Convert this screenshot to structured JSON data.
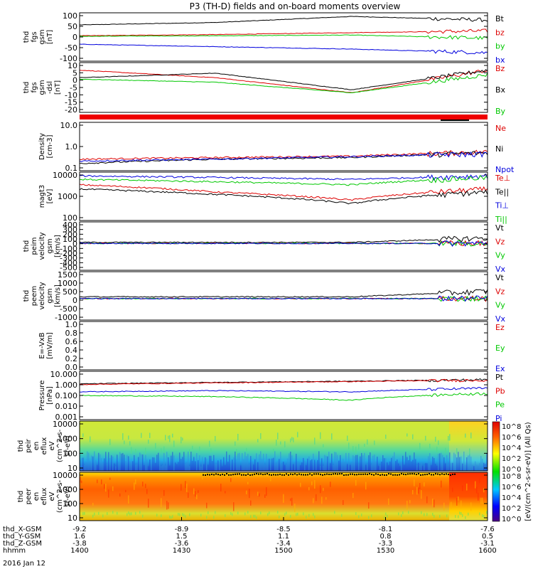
{
  "title": "P3 (TH-D) fields and on-board moments overview",
  "date_label": "2016 Jan 12",
  "colorbar_label": "[eV/(cm^2-s-sr-eV)] (All Qs)",
  "colorbar_ticks": [
    "10^8",
    "10^6",
    "10^4",
    "10^2",
    "10^0"
  ],
  "colors": {
    "black": "#000000",
    "red": "#dd0000",
    "green": "#00c800",
    "blue": "#0000dd"
  },
  "time_axis": {
    "ticks": [
      {
        "label": "1400",
        "xgse": "-9.2",
        "ygse": "1.6",
        "zgse": "-3.8"
      },
      {
        "label": "1430",
        "xgse": "-8.9",
        "ygse": "1.5",
        "zgse": "-3.6"
      },
      {
        "label": "1500",
        "xgse": "-8.5",
        "ygse": "1.1",
        "zgse": "-3.4"
      },
      {
        "label": "1530",
        "xgse": "-8.1",
        "ygse": "0.8",
        "zgse": "-3.3"
      },
      {
        "label": "1600",
        "xgse": "-7.6",
        "ygse": "0.5",
        "zgse": "-3.1"
      }
    ],
    "row_labels": [
      "thd_X-GSM",
      "thd_Y-GSM",
      "thd_Z-GSM",
      "hhmm"
    ]
  },
  "chart_data": [
    {
      "type": "line",
      "ylabel": [
        "thd",
        "fgs",
        "gsm",
        "[nT]"
      ],
      "yticks": [
        "100",
        "50",
        "0",
        "-50",
        "-100"
      ],
      "ylim": [
        -100,
        100
      ],
      "series": [
        {
          "name": "Bt",
          "color": "black",
          "values": [
            50,
            60,
            85,
            70
          ]
        },
        {
          "name": "bz",
          "color": "red",
          "values": [
            5,
            10,
            18,
            25
          ]
        },
        {
          "name": "by",
          "color": "green",
          "values": [
            3,
            5,
            8,
            -5
          ]
        },
        {
          "name": "bx",
          "color": "blue",
          "values": [
            -30,
            -40,
            -50,
            -65
          ]
        }
      ]
    },
    {
      "type": "line",
      "ylabel": [
        "thd",
        "fgs",
        "gsm",
        "-dsl",
        "[nT]"
      ],
      "yticks": [
        "10",
        "5",
        "0",
        "-5",
        "-10",
        "-15",
        "-20"
      ],
      "ylim": [
        -23,
        10
      ],
      "series": [
        {
          "name": "Bz",
          "color": "red",
          "values": [
            5,
            0,
            -10,
            5
          ]
        },
        {
          "name": "Bx",
          "color": "black",
          "values": [
            0,
            3,
            -8,
            5
          ]
        },
        {
          "name": "By",
          "color": "green",
          "values": [
            -1,
            -3,
            -10,
            2
          ]
        }
      ]
    },
    {
      "type": "line",
      "ylabel": [
        "Density",
        "[cm-3]"
      ],
      "yticks": [
        "10.0",
        "1.0",
        "0.1"
      ],
      "ylim": [
        0.1,
        10
      ],
      "log": true,
      "series": [
        {
          "name": "Ne",
          "color": "red",
          "values": [
            0.3,
            0.35,
            0.4,
            0.6
          ]
        },
        {
          "name": "Ni",
          "color": "black",
          "values": [
            0.2,
            0.3,
            0.35,
            0.55
          ]
        },
        {
          "name": "Npot",
          "color": "blue",
          "values": [
            0.25,
            0.3,
            0.38,
            0.5
          ]
        }
      ]
    },
    {
      "type": "line",
      "ylabel": [
        "magt3",
        "[eV]"
      ],
      "yticks": [
        "10000",
        "1000",
        "100"
      ],
      "ylim": [
        100,
        10000
      ],
      "log": true,
      "series": [
        {
          "name": "Te⊥",
          "color": "red",
          "values": [
            3000,
            1500,
            700,
            2000
          ]
        },
        {
          "name": "Te||",
          "color": "black",
          "values": [
            2000,
            1200,
            500,
            1500
          ]
        },
        {
          "name": "Ti⊥",
          "color": "blue",
          "values": [
            7000,
            6000,
            5000,
            7000
          ]
        },
        {
          "name": "Ti||",
          "color": "green",
          "values": [
            5000,
            4000,
            3000,
            6000
          ]
        }
      ]
    },
    {
      "type": "line",
      "ylabel": [
        "thd",
        "peim",
        "velocity",
        "gsm",
        "[km/s]"
      ],
      "yticks": [
        "400",
        "300",
        "200",
        "100",
        "0",
        "-100",
        "-200",
        "-300",
        "-400",
        "-500"
      ],
      "ylim": [
        -500,
        400
      ],
      "series": [
        {
          "name": "Vt",
          "color": "black",
          "values": [
            20,
            20,
            20,
            100
          ]
        },
        {
          "name": "Vz",
          "color": "red",
          "values": [
            0,
            0,
            0,
            0
          ]
        },
        {
          "name": "Vy",
          "color": "green",
          "values": [
            0,
            0,
            0,
            0
          ]
        },
        {
          "name": "Vx",
          "color": "blue",
          "values": [
            0,
            0,
            0,
            0
          ]
        }
      ]
    },
    {
      "type": "line",
      "ylabel": [
        "thd",
        "peem",
        "velocity",
        "gsm",
        "[km/s]"
      ],
      "yticks": [
        "1500",
        "1000",
        "500",
        "0",
        "-500",
        "-1000"
      ],
      "ylim": [
        -1200,
        1500
      ],
      "series": [
        {
          "name": "Vt",
          "color": "black",
          "values": [
            100,
            100,
            100,
            400
          ]
        },
        {
          "name": "Vz",
          "color": "red",
          "values": [
            0,
            0,
            0,
            0
          ]
        },
        {
          "name": "Vy",
          "color": "green",
          "values": [
            0,
            0,
            0,
            0
          ]
        },
        {
          "name": "Vx",
          "color": "blue",
          "values": [
            0,
            0,
            0,
            0
          ]
        }
      ]
    },
    {
      "type": "line",
      "ylabel": [
        "E=-VxB",
        "[mV/m]"
      ],
      "yticks": [
        "1.0",
        "0.8",
        "0.6",
        "0.4",
        "0.2",
        "0.0"
      ],
      "ylim": [
        0,
        1
      ],
      "series": [
        {
          "name": "Ez",
          "color": "red",
          "values": []
        },
        {
          "name": "Ey",
          "color": "green",
          "values": []
        },
        {
          "name": "Ex",
          "color": "blue",
          "values": []
        }
      ]
    },
    {
      "type": "line",
      "ylabel": [
        "Pressure",
        "[nPa]"
      ],
      "yticks": [
        "10.000",
        "1.000",
        "0.100",
        "0.010",
        "0.001"
      ],
      "ylim": [
        0.001,
        10
      ],
      "log": true,
      "series": [
        {
          "name": "Pt",
          "color": "black",
          "values": [
            0.9,
            1.2,
            1.5,
            2.0
          ]
        },
        {
          "name": "Pb",
          "color": "red",
          "values": [
            0.8,
            1.1,
            1.4,
            1.9
          ]
        },
        {
          "name": "Pe",
          "color": "green",
          "values": [
            0.1,
            0.08,
            0.04,
            0.15
          ]
        },
        {
          "name": "Pi",
          "color": "blue",
          "values": [
            0.2,
            0.25,
            0.2,
            0.4
          ]
        }
      ]
    },
    {
      "type": "heatmap",
      "ylabel": [
        "thd",
        "peir",
        "en",
        "eflux",
        "eV",
        "(cm^2-s-",
        "sr-eV)"
      ],
      "yticks": [
        "10000",
        "1000",
        "100",
        "10"
      ],
      "ylim": [
        5,
        30000
      ],
      "log": true
    },
    {
      "type": "heatmap",
      "ylabel": [
        "thd",
        "peer",
        "en",
        "eflux",
        "eV",
        "(cm^2-s-",
        "sr-eV)"
      ],
      "yticks": [
        "10000",
        "1000",
        "100",
        "10"
      ],
      "ylim": [
        5,
        30000
      ],
      "log": true
    }
  ]
}
